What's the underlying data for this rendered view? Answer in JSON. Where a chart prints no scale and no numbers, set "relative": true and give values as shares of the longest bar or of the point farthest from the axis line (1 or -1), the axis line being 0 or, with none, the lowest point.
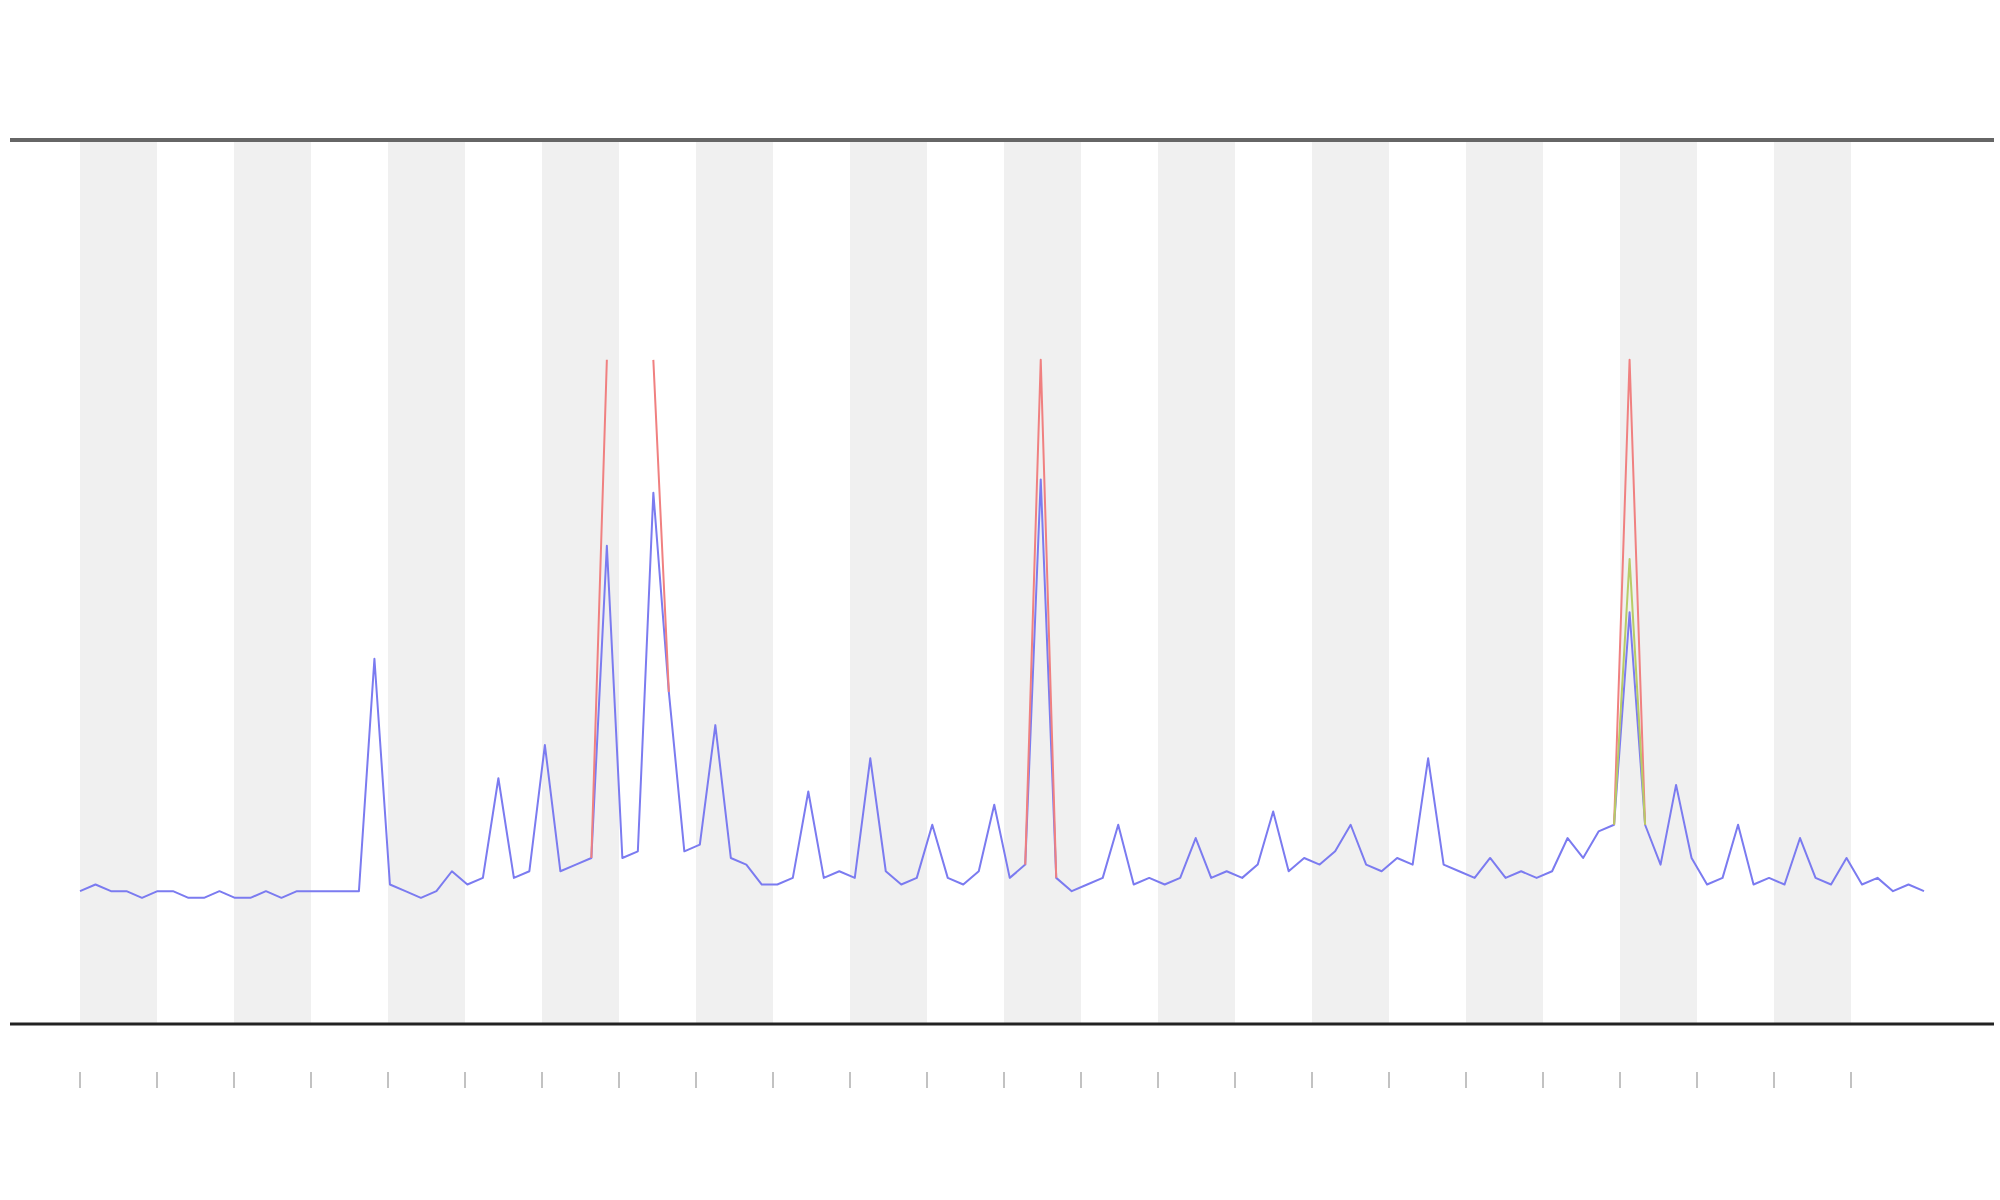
{
  "chart_data": {
    "type": "line",
    "relative": true,
    "categories": [
      null,
      null,
      null,
      null,
      null,
      null,
      null,
      null,
      null,
      null,
      null,
      null,
      null,
      null,
      null,
      null,
      null,
      null,
      null,
      null,
      null,
      null,
      null,
      null,
      null,
      null,
      null,
      null,
      null,
      null,
      null,
      null,
      null,
      null,
      null,
      null,
      null,
      null,
      null,
      null,
      null,
      null,
      null,
      null,
      null,
      null,
      null,
      null,
      null,
      null,
      null,
      null,
      null,
      null,
      null,
      null,
      null,
      null,
      null,
      null,
      null,
      null,
      null,
      null,
      null,
      null,
      null,
      null,
      null,
      null,
      null,
      null,
      null,
      null,
      null,
      null,
      null,
      null,
      null,
      null,
      null,
      null,
      null,
      null,
      null,
      null,
      null,
      null,
      null,
      null,
      null,
      null,
      null,
      null,
      null,
      null,
      null,
      null,
      null,
      null,
      null,
      null,
      null,
      null,
      null,
      null,
      null,
      null,
      null,
      null,
      null,
      null,
      null,
      null,
      null,
      null,
      null,
      null,
      null,
      null
    ],
    "series": [
      {
        "color": "#7b7bf0",
        "values": [
          0.2,
          0.21,
          0.2,
          0.2,
          0.19,
          0.2,
          0.2,
          0.19,
          0.19,
          0.2,
          0.19,
          0.19,
          0.2,
          0.19,
          0.2,
          0.2,
          0.2,
          0.2,
          0.2,
          0.55,
          0.21,
          0.2,
          0.19,
          0.2,
          0.23,
          0.21,
          0.22,
          0.37,
          0.22,
          0.23,
          0.42,
          0.23,
          0.24,
          0.25,
          0.72,
          0.25,
          0.26,
          0.8,
          0.5,
          0.26,
          0.27,
          0.45,
          0.25,
          0.24,
          0.21,
          0.21,
          0.22,
          0.35,
          0.22,
          0.23,
          0.22,
          0.4,
          0.23,
          0.21,
          0.22,
          0.3,
          0.22,
          0.21,
          0.23,
          0.33,
          0.22,
          0.24,
          0.82,
          0.22,
          0.2,
          0.21,
          0.22,
          0.3,
          0.21,
          0.22,
          0.21,
          0.22,
          0.28,
          0.22,
          0.23,
          0.22,
          0.24,
          0.32,
          0.23,
          0.25,
          0.24,
          0.26,
          0.3,
          0.24,
          0.23,
          0.25,
          0.24,
          0.4,
          0.24,
          0.23,
          0.22,
          0.25,
          0.22,
          0.23,
          0.22,
          0.23,
          0.28,
          0.25,
          0.29,
          0.3,
          0.62,
          0.3,
          0.24,
          0.36,
          0.25,
          0.21,
          0.22,
          0.3,
          0.21,
          0.22,
          0.21,
          0.28,
          0.22,
          0.21,
          0.25,
          0.21,
          0.22,
          0.2,
          0.21,
          0.2
        ]
      },
      {
        "color": "#f08080",
        "values": [
          null,
          null,
          null,
          null,
          null,
          null,
          null,
          null,
          null,
          null,
          null,
          null,
          null,
          null,
          null,
          null,
          null,
          null,
          null,
          null,
          null,
          null,
          null,
          null,
          null,
          null,
          null,
          null,
          null,
          null,
          null,
          null,
          null,
          0.25,
          1,
          null,
          null,
          1,
          0.5,
          null,
          null,
          null,
          null,
          null,
          null,
          null,
          null,
          null,
          null,
          null,
          null,
          null,
          null,
          null,
          null,
          null,
          null,
          null,
          null,
          null,
          null,
          0.24,
          1,
          0.22,
          null,
          null,
          null,
          null,
          null,
          null,
          null,
          null,
          null,
          null,
          null,
          null,
          null,
          null,
          null,
          null,
          null,
          null,
          null,
          null,
          null,
          null,
          null,
          null,
          null,
          null,
          null,
          null,
          null,
          null,
          null,
          null,
          null,
          null,
          null,
          0.3,
          1,
          0.3,
          null,
          null,
          null,
          null,
          null,
          null,
          null,
          null,
          null,
          null,
          null,
          null,
          null,
          null,
          null,
          null,
          null,
          null
        ]
      },
      {
        "color": "#b8cc66",
        "values": [
          null,
          null,
          null,
          null,
          null,
          null,
          null,
          null,
          null,
          null,
          null,
          null,
          null,
          null,
          null,
          null,
          null,
          null,
          null,
          null,
          null,
          null,
          null,
          null,
          null,
          null,
          null,
          null,
          null,
          null,
          null,
          null,
          null,
          null,
          null,
          null,
          null,
          null,
          null,
          null,
          null,
          null,
          null,
          null,
          null,
          null,
          null,
          null,
          null,
          null,
          null,
          null,
          null,
          null,
          null,
          null,
          null,
          null,
          null,
          null,
          null,
          null,
          null,
          null,
          null,
          null,
          null,
          null,
          null,
          null,
          null,
          null,
          null,
          null,
          null,
          null,
          null,
          null,
          null,
          null,
          null,
          null,
          null,
          null,
          null,
          null,
          null,
          null,
          null,
          null,
          null,
          null,
          null,
          null,
          null,
          null,
          null,
          null,
          null,
          0.3,
          0.7,
          0.3,
          null,
          null,
          null,
          null,
          null,
          null,
          null,
          null,
          null,
          null,
          null,
          null,
          null,
          null,
          null,
          null,
          null,
          null
        ]
      }
    ]
  }
}
